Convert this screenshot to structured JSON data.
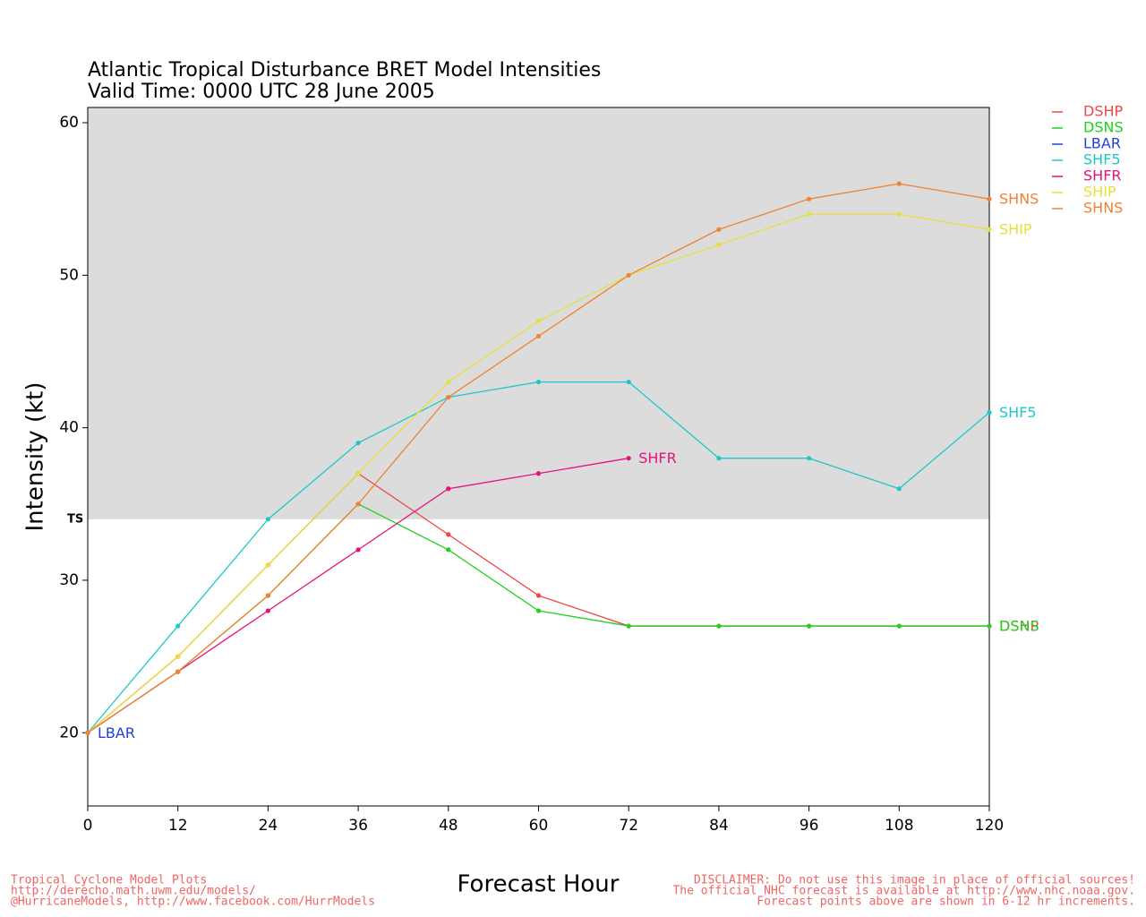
{
  "chart_data": {
    "type": "line",
    "title": "Atlantic Tropical Disturbance BRET Model Intensities",
    "subtitle": "Valid Time: 0000 UTC 28 June 2005",
    "xlabel": "Forecast Hour",
    "ylabel": "Intensity (kt)",
    "x": [
      0,
      12,
      24,
      36,
      48,
      60,
      72,
      84,
      96,
      108,
      120
    ],
    "xlim": [
      0,
      120
    ],
    "xticks": [
      0,
      12,
      24,
      36,
      48,
      60,
      72,
      84,
      96,
      108,
      120
    ],
    "ylim": [
      15.2,
      61
    ],
    "yticks": [
      20,
      30,
      40,
      50,
      60
    ],
    "threshold": {
      "label": "TS",
      "value": 34,
      "color": "#dcdcdc"
    },
    "series": [
      {
        "name": "DSHP",
        "color": "#f04646",
        "values": [
          20,
          25,
          31,
          37,
          33,
          29,
          27,
          27,
          27,
          27,
          27
        ]
      },
      {
        "name": "DSNS",
        "color": "#1ed21e",
        "values": [
          20,
          24,
          29,
          35,
          32,
          28,
          27,
          27,
          27,
          27,
          27
        ]
      },
      {
        "name": "LBAR",
        "color": "#2040e0",
        "values": [
          20,
          null,
          null,
          null,
          null,
          null,
          null,
          null,
          null,
          null,
          null
        ]
      },
      {
        "name": "SHF5",
        "color": "#1ec8c8",
        "values": [
          20,
          27,
          34,
          39,
          42,
          43,
          43,
          38,
          38,
          36,
          41
        ]
      },
      {
        "name": "SHFR",
        "color": "#e6127c",
        "values": [
          20,
          24,
          28,
          32,
          36,
          37,
          38,
          null,
          null,
          null,
          null
        ]
      },
      {
        "name": "SHIP",
        "color": "#e6e03c",
        "values": [
          20,
          25,
          31,
          37,
          43,
          47,
          50,
          52,
          54,
          54,
          53
        ]
      },
      {
        "name": "SHNS",
        "color": "#f08232",
        "values": [
          20,
          24,
          29,
          35,
          42,
          46,
          50,
          53,
          55,
          56,
          55
        ]
      }
    ]
  },
  "footer": {
    "left": [
      "Tropical Cyclone Model Plots",
      "http://derecho.math.uwm.edu/models/",
      "@HurricaneModels, http://www.facebook.com/HurrModels"
    ],
    "right": [
      "DISCLAIMER: Do not use this image in place of official sources!",
      "The official NHC forecast is available at http://www.nhc.noaa.gov.",
      "Forecast points above are shown in 6-12 hr increments."
    ]
  }
}
